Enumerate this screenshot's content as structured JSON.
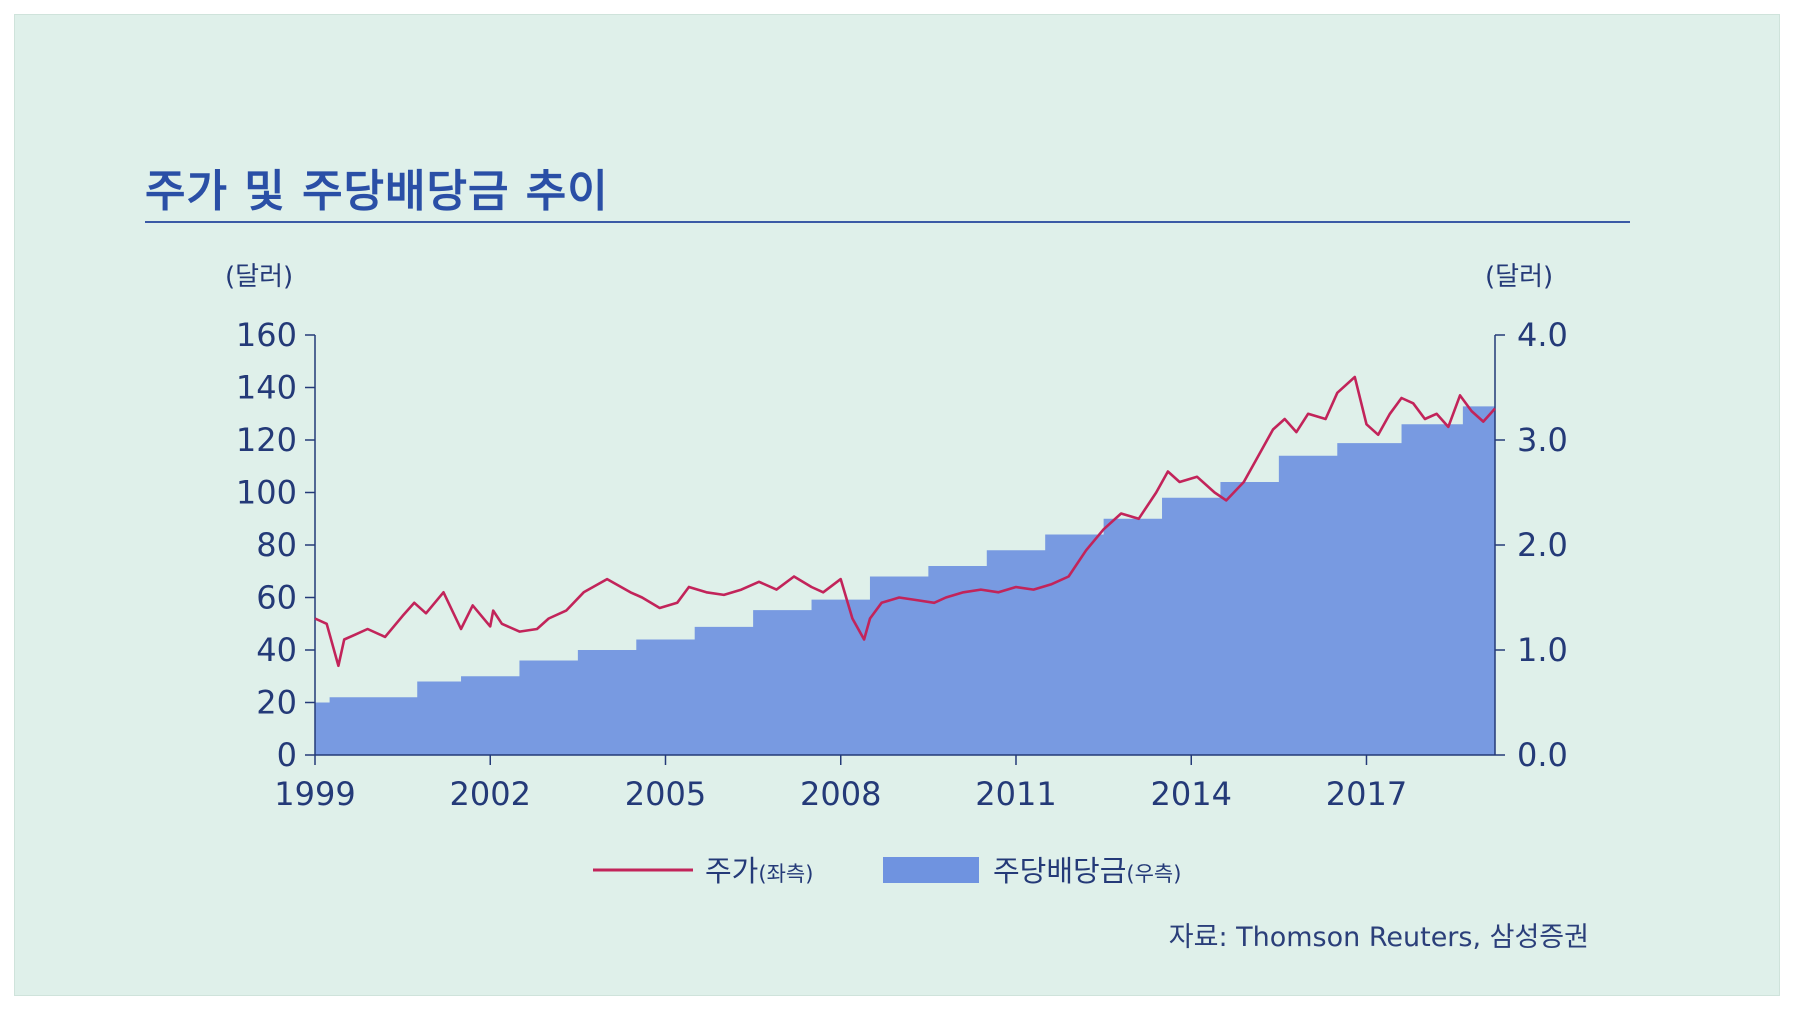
{
  "title": "주가 및 주당배당금 추이",
  "source": "자료: Thomson Reuters, 삼성증권",
  "chart_data": {
    "type": "line",
    "left_axis": {
      "unit_label": "(달러)",
      "ticks": [
        "160",
        "140",
        "120",
        "100",
        "80",
        "60",
        "40",
        "20",
        "0"
      ],
      "range": [
        0,
        160
      ]
    },
    "right_axis": {
      "unit_label": "(달러)",
      "ticks": [
        "4.0",
        "3.0",
        "2.0",
        "1.0",
        "0.0"
      ],
      "range": [
        0,
        4
      ]
    },
    "x_ticks": [
      "1999",
      "2002",
      "2005",
      "2008",
      "2011",
      "2014",
      "2017"
    ],
    "x_range": [
      1999,
      2019.2
    ],
    "legend": {
      "price": "주가",
      "price_side": "(좌측)",
      "dividend": "주당배당금",
      "dividend_side": "(우측)"
    },
    "colors": {
      "price": "#c2245a",
      "dividend": "#6f93e0",
      "axis": "#243a78"
    },
    "series": [
      {
        "name": "주가(좌측)",
        "axis": "left",
        "kind": "line",
        "x": [
          1999.0,
          1999.2,
          1999.4,
          1999.5,
          1999.7,
          1999.9,
          2000.2,
          2000.5,
          2000.7,
          2000.9,
          2001.2,
          2001.5,
          2001.7,
          2002.0,
          2002.05,
          2002.2,
          2002.5,
          2002.8,
          2003.0,
          2003.3,
          2003.6,
          2004.0,
          2004.4,
          2004.6,
          2004.9,
          2005.2,
          2005.4,
          2005.7,
          2006.0,
          2006.3,
          2006.6,
          2006.9,
          2007.2,
          2007.5,
          2007.7,
          2008.0,
          2008.2,
          2008.4,
          2008.5,
          2008.7,
          2009.0,
          2009.3,
          2009.6,
          2009.8,
          2010.1,
          2010.4,
          2010.7,
          2011.0,
          2011.3,
          2011.6,
          2011.9,
          2012.2,
          2012.5,
          2012.8,
          2013.1,
          2013.4,
          2013.6,
          2013.8,
          2014.1,
          2014.4,
          2014.6,
          2014.9,
          2015.1,
          2015.4,
          2015.6,
          2015.8,
          2016.0,
          2016.3,
          2016.5,
          2016.8,
          2017.0,
          2017.2,
          2017.4,
          2017.6,
          2017.8,
          2018.0,
          2018.2,
          2018.4,
          2018.6,
          2018.8,
          2019.0,
          2019.2
        ],
        "values": [
          52,
          50,
          34,
          44,
          46,
          48,
          45,
          53,
          58,
          54,
          62,
          48,
          57,
          49,
          55,
          50,
          47,
          48,
          52,
          55,
          62,
          67,
          62,
          60,
          56,
          58,
          64,
          62,
          61,
          63,
          66,
          63,
          68,
          64,
          62,
          67,
          52,
          44,
          52,
          58,
          60,
          59,
          58,
          60,
          62,
          63,
          62,
          64,
          63,
          65,
          68,
          78,
          86,
          92,
          90,
          100,
          108,
          104,
          106,
          100,
          97,
          104,
          112,
          124,
          128,
          123,
          130,
          128,
          138,
          144,
          126,
          122,
          130,
          136,
          134,
          128,
          130,
          125,
          137,
          131,
          127,
          132
        ]
      },
      {
        "name": "주당배당금(우측)",
        "axis": "right",
        "kind": "step-area",
        "x": [
          1999.0,
          1999.25,
          2000.0,
          2000.75,
          2001.5,
          2002.5,
          2003.5,
          2004.5,
          2005.5,
          2006.5,
          2007.5,
          2008.5,
          2009.5,
          2010.5,
          2011.5,
          2012.5,
          2013.5,
          2014.5,
          2015.5,
          2016.5,
          2017.6,
          2018.65,
          2019.2
        ],
        "values": [
          0.5,
          0.55,
          0.55,
          0.7,
          0.75,
          0.9,
          1.0,
          1.1,
          1.22,
          1.38,
          1.48,
          1.7,
          1.8,
          1.95,
          2.1,
          2.25,
          2.45,
          2.6,
          2.85,
          2.97,
          3.15,
          3.32,
          3.5
        ]
      }
    ]
  }
}
